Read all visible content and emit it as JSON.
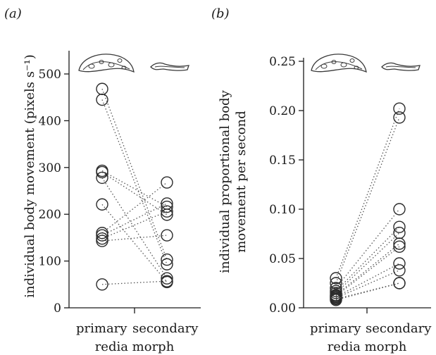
{
  "chart_data": [
    {
      "type": "scatter",
      "panel_label": "(a)",
      "ylabel": "individual body movement (pixels s⁻¹)",
      "xlabel": "redia morph",
      "categories": [
        "primary",
        "secondary"
      ],
      "ylim": [
        0,
        550
      ],
      "yticks": [
        0,
        100,
        200,
        300,
        400,
        500
      ],
      "icons": [
        "primary-redia-icon",
        "secondary-redia-icon"
      ],
      "pairs": [
        {
          "primary": 468,
          "secondary": 103
        },
        {
          "primary": 445,
          "secondary": 93
        },
        {
          "primary": 293,
          "secondary": 216
        },
        {
          "primary": 290,
          "secondary": 199
        },
        {
          "primary": 278,
          "secondary": 63
        },
        {
          "primary": 221,
          "secondary": 55
        },
        {
          "primary": 160,
          "secondary": 268
        },
        {
          "primary": 155,
          "secondary": 223
        },
        {
          "primary": 148,
          "secondary": 206
        },
        {
          "primary": 143,
          "secondary": 155
        },
        {
          "primary": 50,
          "secondary": 57
        }
      ]
    },
    {
      "type": "scatter",
      "panel_label": "(b)",
      "ylabel": [
        "individual proportional body",
        "movement per second"
      ],
      "xlabel": "redia morph",
      "categories": [
        "primary",
        "secondary"
      ],
      "ylim": [
        0,
        0.25
      ],
      "yticks": [
        "0.00",
        "0.05",
        "0.10",
        "0.15",
        "0.20",
        "0.25"
      ],
      "icons": [
        "primary-redia-icon",
        "secondary-redia-icon"
      ],
      "pairs": [
        {
          "primary": 0.03,
          "secondary": 0.202
        },
        {
          "primary": 0.025,
          "secondary": 0.193
        },
        {
          "primary": 0.02,
          "secondary": 0.1
        },
        {
          "primary": 0.017,
          "secondary": 0.082
        },
        {
          "primary": 0.015,
          "secondary": 0.076
        },
        {
          "primary": 0.013,
          "secondary": 0.065
        },
        {
          "primary": 0.012,
          "secondary": 0.062
        },
        {
          "primary": 0.011,
          "secondary": 0.045
        },
        {
          "primary": 0.01,
          "secondary": 0.038
        },
        {
          "primary": 0.009,
          "secondary": 0.025
        },
        {
          "primary": 0.008,
          "secondary": 0.025
        }
      ]
    }
  ]
}
